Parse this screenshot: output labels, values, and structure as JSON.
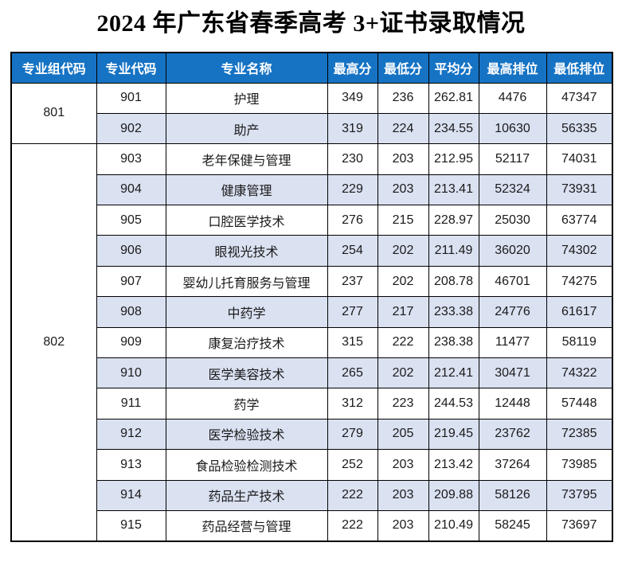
{
  "title": "2024 年广东省春季高考 3+证书录取情况",
  "colors": {
    "header_bg": "#1673C4",
    "header_text": "#FFFFFF",
    "stripe_bg": "#DAE1F1",
    "border": "#000000",
    "text": "#1A1A1A",
    "page_bg": "#FFFFFF"
  },
  "chart_data": {
    "type": "table",
    "title": "2024 年广东省春季高考 3+证书录取情况",
    "columns": [
      "专业组代码",
      "专业代码",
      "专业名称",
      "最高分",
      "最低分",
      "平均分",
      "最高排位",
      "最低排位"
    ],
    "groups": [
      {
        "group_code": "801",
        "rows": [
          [
            "901",
            "护理",
            "349",
            "236",
            "262.81",
            "4476",
            "47347"
          ],
          [
            "902",
            "助产",
            "319",
            "224",
            "234.55",
            "10630",
            "56335"
          ]
        ]
      },
      {
        "group_code": "802",
        "rows": [
          [
            "903",
            "老年保健与管理",
            "230",
            "203",
            "212.95",
            "52117",
            "74031"
          ],
          [
            "904",
            "健康管理",
            "229",
            "203",
            "213.41",
            "52324",
            "73931"
          ],
          [
            "905",
            "口腔医学技术",
            "276",
            "215",
            "228.97",
            "25030",
            "63774"
          ],
          [
            "906",
            "眼视光技术",
            "254",
            "202",
            "211.49",
            "36020",
            "74302"
          ],
          [
            "907",
            "婴幼儿托育服务与管理",
            "237",
            "202",
            "208.78",
            "46701",
            "74275"
          ],
          [
            "908",
            "中药学",
            "277",
            "217",
            "233.38",
            "24776",
            "61617"
          ],
          [
            "909",
            "康复治疗技术",
            "315",
            "222",
            "238.38",
            "11477",
            "58119"
          ],
          [
            "910",
            "医学美容技术",
            "265",
            "202",
            "212.41",
            "30471",
            "74322"
          ],
          [
            "911",
            "药学",
            "312",
            "223",
            "244.53",
            "12448",
            "57448"
          ],
          [
            "912",
            "医学检验技术",
            "279",
            "205",
            "219.45",
            "23762",
            "72385"
          ],
          [
            "913",
            "食品检验检测技术",
            "252",
            "203",
            "213.42",
            "37264",
            "73985"
          ],
          [
            "914",
            "药品生产技术",
            "222",
            "203",
            "209.88",
            "58126",
            "73795"
          ],
          [
            "915",
            "药品经营与管理",
            "222",
            "203",
            "210.49",
            "58245",
            "73697"
          ]
        ]
      }
    ]
  }
}
